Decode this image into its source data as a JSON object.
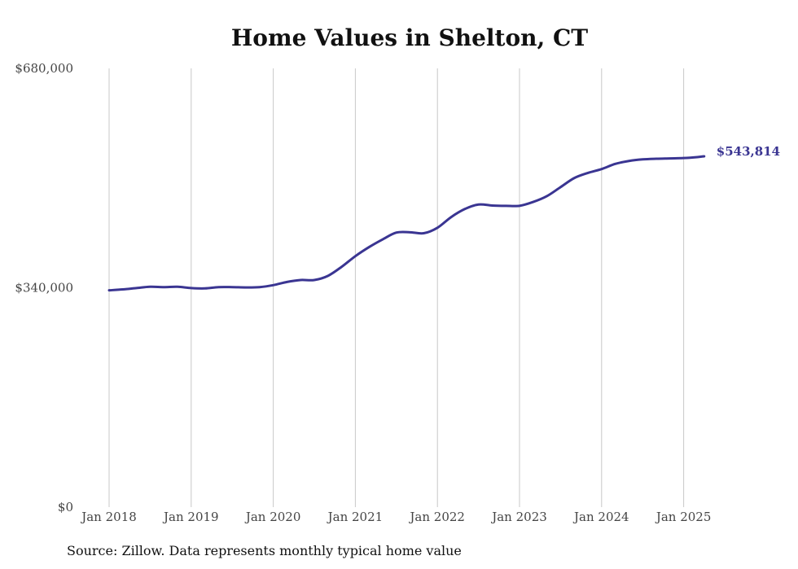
{
  "chart_data": {
    "type": "line",
    "title": "Home Values in Shelton, CT",
    "xlabel": "",
    "ylabel": "",
    "source": "Source: Zillow. Data represents monthly typical home value",
    "ylim": [
      0,
      680000
    ],
    "y_ticks": [
      {
        "value": 0,
        "label": "$0"
      },
      {
        "value": 340000,
        "label": "$340,000"
      },
      {
        "value": 680000,
        "label": "$680,000"
      }
    ],
    "x_ticks": [
      {
        "value": "2018-01",
        "label": "Jan 2018"
      },
      {
        "value": "2019-01",
        "label": "Jan 2019"
      },
      {
        "value": "2020-01",
        "label": "Jan 2020"
      },
      {
        "value": "2021-01",
        "label": "Jan 2021"
      },
      {
        "value": "2022-01",
        "label": "Jan 2022"
      },
      {
        "value": "2023-01",
        "label": "Jan 2023"
      },
      {
        "value": "2024-01",
        "label": "Jan 2024"
      },
      {
        "value": "2025-01",
        "label": "Jan 2025"
      }
    ],
    "grid": {
      "vertical": true,
      "horizontal": false
    },
    "line_color": "#3a3592",
    "grid_color": "#c8c8c8",
    "end_label": "$543,814",
    "series": [
      {
        "x": [
          "2018-01",
          "2018-03",
          "2018-05",
          "2018-07",
          "2018-09",
          "2018-11",
          "2019-01",
          "2019-03",
          "2019-05",
          "2019-07",
          "2019-09",
          "2019-11",
          "2020-01",
          "2020-03",
          "2020-05",
          "2020-07",
          "2020-09",
          "2020-11",
          "2021-01",
          "2021-03",
          "2021-05",
          "2021-07",
          "2021-09",
          "2021-11",
          "2022-01",
          "2022-03",
          "2022-05",
          "2022-07",
          "2022-09",
          "2022-11",
          "2023-01",
          "2023-03",
          "2023-05",
          "2023-07",
          "2023-09",
          "2023-11",
          "2024-01",
          "2024-03",
          "2024-05",
          "2024-07",
          "2024-09",
          "2024-11",
          "2025-01",
          "2025-03",
          "2025-04"
        ],
        "values": [
          336000,
          337500,
          339500,
          341500,
          341000,
          341500,
          339500,
          339000,
          341000,
          341000,
          340500,
          341000,
          344000,
          349000,
          352000,
          352000,
          358500,
          372500,
          389000,
          403000,
          415000,
          425500,
          426000,
          424500,
          433000,
          449500,
          462000,
          469000,
          467500,
          467000,
          467000,
          473000,
          482000,
          496000,
          510000,
          518000,
          524000,
          532000,
          536500,
          539000,
          540000,
          540500,
          541000,
          542500,
          543814
        ]
      }
    ]
  }
}
